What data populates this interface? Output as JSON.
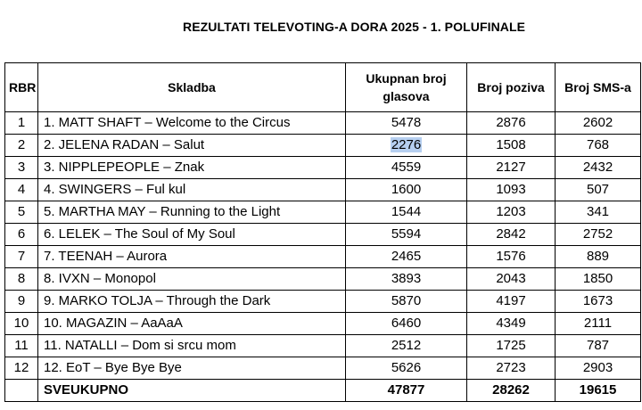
{
  "title": "REZULTATI TELEVOTING-A DORA 2025 - 1. POLUFINALE",
  "headers": {
    "rbr": "RBR",
    "song": "Skladba",
    "total_votes_line1": "Ukupnan broj",
    "total_votes_line2": "glasova",
    "calls": "Broj poziva",
    "sms": "Broj SMS-a"
  },
  "rows": [
    {
      "rbr": "1",
      "song": "1. MATT SHAFT – Welcome to the Circus",
      "total": "5478",
      "calls": "2876",
      "sms": "2602"
    },
    {
      "rbr": "2",
      "song": "2. JELENA RADAN – Salut",
      "total": "2276",
      "calls": "1508",
      "sms": "768"
    },
    {
      "rbr": "3",
      "song": "3. NIPPLEPEOPLE – Znak",
      "total": "4559",
      "calls": "2127",
      "sms": "2432"
    },
    {
      "rbr": "4",
      "song": "4. SWINGERS – Ful kul",
      "total": "1600",
      "calls": "1093",
      "sms": "507"
    },
    {
      "rbr": "5",
      "song": "5. MARTHA MAY – Running to the Light",
      "total": "1544",
      "calls": "1203",
      "sms": "341"
    },
    {
      "rbr": "6",
      "song": "6. LELEK – The Soul of My Soul",
      "total": "5594",
      "calls": "2842",
      "sms": "2752"
    },
    {
      "rbr": "7",
      "song": "7. TEENAH – Aurora",
      "total": "2465",
      "calls": "1576",
      "sms": "889"
    },
    {
      "rbr": "8",
      "song": "8. IVXN – Monopol",
      "total": "3893",
      "calls": "2043",
      "sms": "1850"
    },
    {
      "rbr": "9",
      "song": "9. MARKO TOLJA – Through the Dark",
      "total": "5870",
      "calls": "4197",
      "sms": "1673"
    },
    {
      "rbr": "10",
      "song": "10. MAGAZIN – AaAaA",
      "total": "6460",
      "calls": "4349",
      "sms": "2111"
    },
    {
      "rbr": "11",
      "song": "11. NATALLI – Dom si srcu mom",
      "total": "2512",
      "calls": "1725",
      "sms": "787"
    },
    {
      "rbr": "12",
      "song": "12. EoT – Bye Bye Bye",
      "total": "5626",
      "calls": "2723",
      "sms": "2903"
    }
  ],
  "totals": {
    "label": "SVEUKUPNO",
    "total": "47877",
    "calls": "28262",
    "sms": "19615"
  },
  "selection": {
    "row_index": 1,
    "column": "total",
    "color": "#b6cff0"
  }
}
